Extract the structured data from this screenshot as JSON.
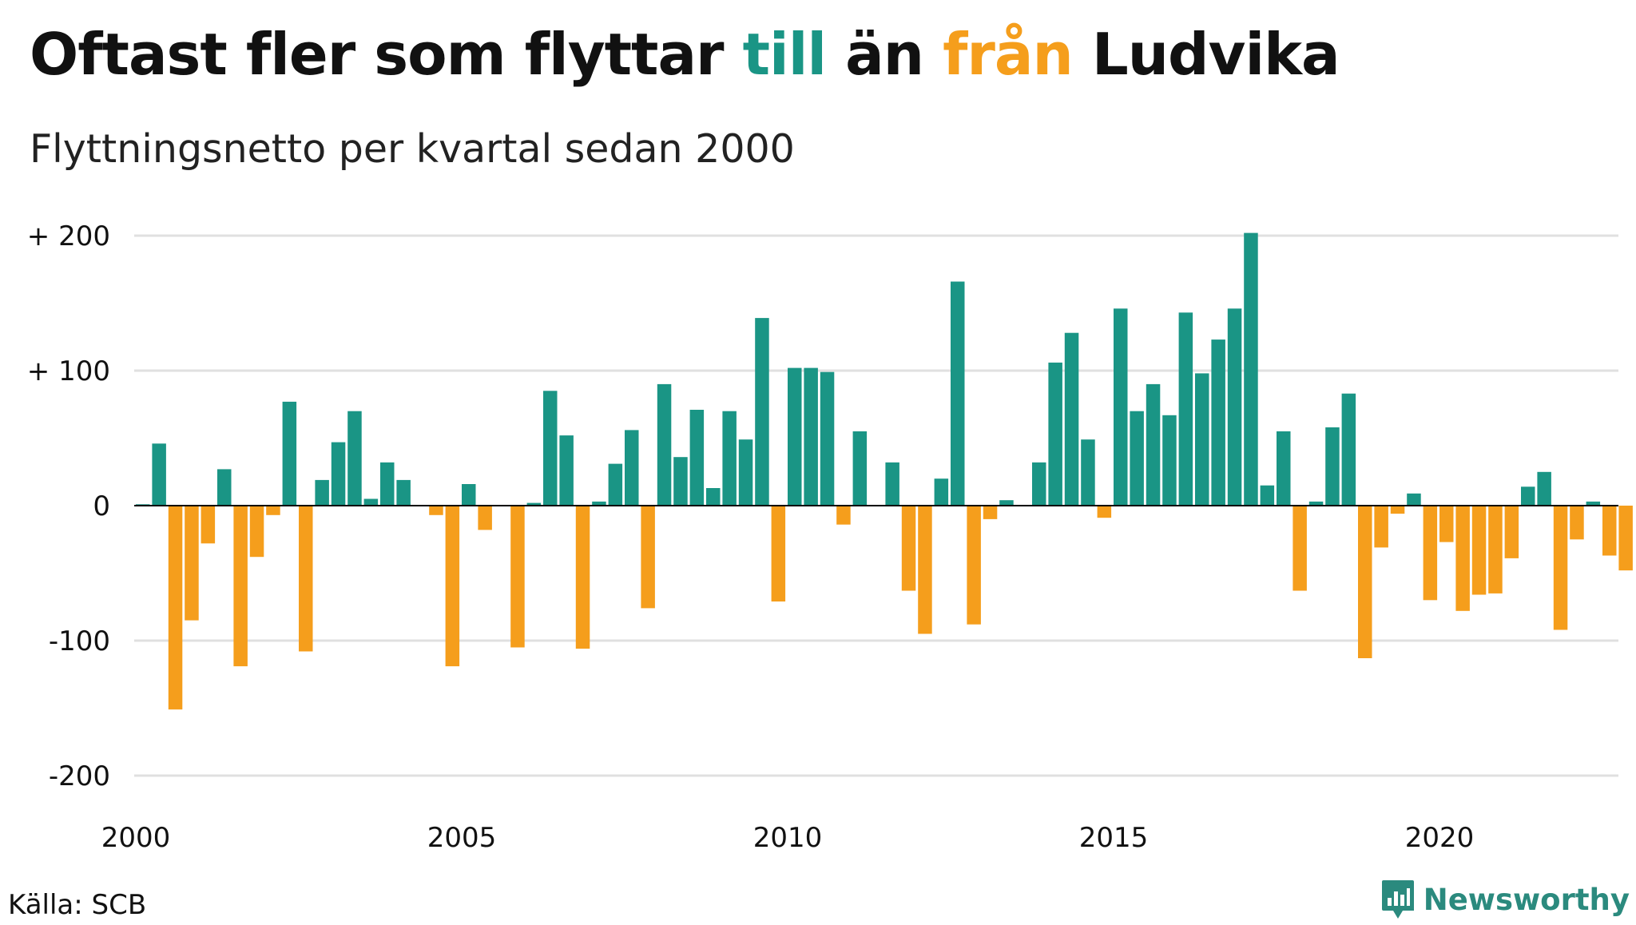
{
  "title": {
    "part1": "Oftast fler som flyttar ",
    "part2": "till",
    "part3": " än ",
    "part4": "från",
    "part5": " Ludvika"
  },
  "subtitle": "Flyttningsnetto per kvartal sedan 2000",
  "source": "Källa: SCB",
  "brand": "Newsworthy",
  "colors": {
    "positive": "#1a9585",
    "negative": "#f59e1c",
    "grid": "#e0e0e0",
    "zero": "#000000",
    "brand": "#2b8a7e"
  },
  "chart_data": {
    "type": "bar",
    "x_start": "2000-Q1",
    "ylim": [
      -200,
      200
    ],
    "y_ticks": [
      {
        "value": 200,
        "label": "+ 200"
      },
      {
        "value": 100,
        "label": "+ 100"
      },
      {
        "value": 0,
        "label": "0"
      },
      {
        "value": -100,
        "label": "-100"
      },
      {
        "value": -200,
        "label": "-200"
      }
    ],
    "x_ticks": [
      "2000",
      "2005",
      "2010",
      "2015",
      "2020"
    ],
    "values": [
      1,
      46,
      -151,
      -85,
      -28,
      27,
      -119,
      -38,
      -7,
      77,
      -108,
      19,
      47,
      70,
      5,
      32,
      19,
      0,
      -7,
      -119,
      16,
      -18,
      0,
      -105,
      2,
      85,
      52,
      -106,
      3,
      31,
      56,
      -76,
      90,
      36,
      71,
      13,
      70,
      49,
      139,
      -71,
      102,
      102,
      99,
      -14,
      55,
      0,
      32,
      -63,
      -95,
      20,
      166,
      -88,
      -10,
      4,
      0,
      32,
      106,
      128,
      49,
      -9,
      146,
      70,
      90,
      67,
      143,
      98,
      123,
      146,
      202,
      15,
      55,
      -63,
      3,
      58,
      83,
      -113,
      -31,
      -6,
      9,
      -70,
      -27,
      -78,
      -66,
      -65,
      -39,
      14,
      25,
      -92,
      -25,
      3,
      -37,
      -48
    ]
  }
}
